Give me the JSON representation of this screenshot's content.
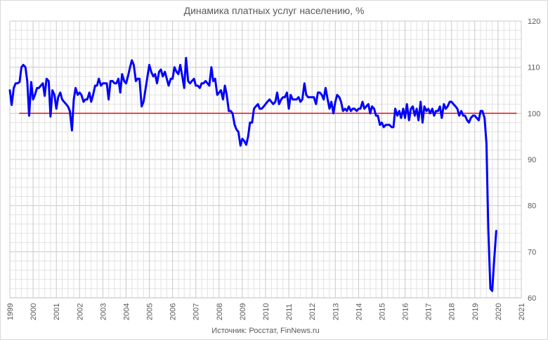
{
  "chart_data": {
    "type": "line",
    "title": "Динамика платных услуг населению, %",
    "source_note": "Источник: Росстат, FinNews.ru",
    "x_tick_labels": [
      "1999",
      "2000",
      "2001",
      "2002",
      "2003",
      "2004",
      "2005",
      "2006",
      "2007",
      "2008",
      "2009",
      "2010",
      "2011",
      "2012",
      "2013",
      "2014",
      "2015",
      "2016",
      "2017",
      "2018",
      "2019",
      "2020",
      "2021"
    ],
    "y_tick_labels": [
      "60",
      "70",
      "80",
      "90",
      "100",
      "110",
      "120"
    ],
    "xlim": [
      1999,
      2021
    ],
    "ylim": [
      60,
      120
    ],
    "y_axis_side": "right",
    "grid": true,
    "reference_line": {
      "value": 100,
      "x_start": 1999.4,
      "x_end": 2020.8,
      "color": "#e02020"
    },
    "series": [
      {
        "color": "#0000ff",
        "points": [
          [
            1999.0,
            105.0
          ],
          [
            1999.08,
            101.8
          ],
          [
            1999.17,
            105.5
          ],
          [
            1999.25,
            106.5
          ],
          [
            1999.33,
            106.5
          ],
          [
            1999.42,
            106.8
          ],
          [
            1999.5,
            110.0
          ],
          [
            1999.58,
            110.5
          ],
          [
            1999.67,
            110.0
          ],
          [
            1999.75,
            107.0
          ],
          [
            1999.83,
            99.5
          ],
          [
            1999.92,
            106.8
          ],
          [
            2000.0,
            103.0
          ],
          [
            2000.08,
            104.0
          ],
          [
            2000.17,
            105.5
          ],
          [
            2000.25,
            105.5
          ],
          [
            2000.33,
            106.0
          ],
          [
            2000.42,
            106.5
          ],
          [
            2000.5,
            103.8
          ],
          [
            2000.58,
            107.5
          ],
          [
            2000.67,
            107.0
          ],
          [
            2000.75,
            99.3
          ],
          [
            2000.83,
            105.0
          ],
          [
            2000.92,
            104.0
          ],
          [
            2001.0,
            101.0
          ],
          [
            2001.08,
            103.5
          ],
          [
            2001.17,
            104.5
          ],
          [
            2001.25,
            103.0
          ],
          [
            2001.33,
            102.5
          ],
          [
            2001.42,
            102.0
          ],
          [
            2001.5,
            101.5
          ],
          [
            2001.58,
            100.5
          ],
          [
            2001.67,
            96.3
          ],
          [
            2001.75,
            103.0
          ],
          [
            2001.83,
            105.5
          ],
          [
            2001.92,
            104.0
          ],
          [
            2002.0,
            104.5
          ],
          [
            2002.08,
            104.0
          ],
          [
            2002.17,
            102.5
          ],
          [
            2002.25,
            103.0
          ],
          [
            2002.33,
            103.0
          ],
          [
            2002.42,
            104.5
          ],
          [
            2002.5,
            102.5
          ],
          [
            2002.58,
            104.0
          ],
          [
            2002.67,
            106.0
          ],
          [
            2002.75,
            106.0
          ],
          [
            2002.83,
            107.5
          ],
          [
            2002.92,
            106.0
          ],
          [
            2003.0,
            106.5
          ],
          [
            2003.08,
            106.5
          ],
          [
            2003.17,
            106.5
          ],
          [
            2003.25,
            103.0
          ],
          [
            2003.33,
            107.0
          ],
          [
            2003.42,
            107.0
          ],
          [
            2003.5,
            106.5
          ],
          [
            2003.58,
            106.5
          ],
          [
            2003.67,
            107.5
          ],
          [
            2003.75,
            104.5
          ],
          [
            2003.83,
            108.5
          ],
          [
            2003.92,
            107.0
          ],
          [
            2004.0,
            106.5
          ],
          [
            2004.08,
            108.0
          ],
          [
            2004.17,
            110.0
          ],
          [
            2004.25,
            111.5
          ],
          [
            2004.33,
            110.5
          ],
          [
            2004.42,
            107.0
          ],
          [
            2004.5,
            107.5
          ],
          [
            2004.58,
            107.5
          ],
          [
            2004.67,
            101.5
          ],
          [
            2004.75,
            102.5
          ],
          [
            2004.83,
            105.0
          ],
          [
            2004.92,
            108.0
          ],
          [
            2005.0,
            110.5
          ],
          [
            2005.08,
            109.0
          ],
          [
            2005.17,
            108.0
          ],
          [
            2005.25,
            108.5
          ],
          [
            2005.33,
            106.5
          ],
          [
            2005.42,
            109.0
          ],
          [
            2005.5,
            109.5
          ],
          [
            2005.58,
            108.0
          ],
          [
            2005.67,
            109.0
          ],
          [
            2005.75,
            107.5
          ],
          [
            2005.83,
            106.0
          ],
          [
            2005.92,
            107.5
          ],
          [
            2006.0,
            107.5
          ],
          [
            2006.08,
            110.0
          ],
          [
            2006.17,
            109.0
          ],
          [
            2006.25,
            108.5
          ],
          [
            2006.33,
            110.5
          ],
          [
            2006.42,
            108.0
          ],
          [
            2006.5,
            105.5
          ],
          [
            2006.58,
            112.0
          ],
          [
            2006.67,
            107.0
          ],
          [
            2006.75,
            106.5
          ],
          [
            2006.83,
            107.0
          ],
          [
            2006.92,
            107.5
          ],
          [
            2007.0,
            106.0
          ],
          [
            2007.08,
            106.0
          ],
          [
            2007.17,
            105.5
          ],
          [
            2007.25,
            106.5
          ],
          [
            2007.33,
            106.5
          ],
          [
            2007.42,
            107.0
          ],
          [
            2007.5,
            106.5
          ],
          [
            2007.58,
            106.0
          ],
          [
            2007.67,
            110.0
          ],
          [
            2007.75,
            107.0
          ],
          [
            2007.83,
            107.5
          ],
          [
            2007.92,
            104.0
          ],
          [
            2008.0,
            104.5
          ],
          [
            2008.08,
            105.0
          ],
          [
            2008.17,
            103.0
          ],
          [
            2008.25,
            106.0
          ],
          [
            2008.33,
            104.0
          ],
          [
            2008.42,
            100.5
          ],
          [
            2008.5,
            100.5
          ],
          [
            2008.58,
            100.0
          ],
          [
            2008.67,
            97.5
          ],
          [
            2008.75,
            96.5
          ],
          [
            2008.83,
            96.0
          ],
          [
            2008.92,
            93.0
          ],
          [
            2009.0,
            94.5
          ],
          [
            2009.08,
            94.0
          ],
          [
            2009.17,
            93.2
          ],
          [
            2009.25,
            95.0
          ],
          [
            2009.33,
            98.0
          ],
          [
            2009.42,
            98.0
          ],
          [
            2009.5,
            101.0
          ],
          [
            2009.58,
            101.5
          ],
          [
            2009.67,
            102.0
          ],
          [
            2009.75,
            101.0
          ],
          [
            2009.83,
            101.0
          ],
          [
            2009.92,
            101.5
          ],
          [
            2010.0,
            102.0
          ],
          [
            2010.08,
            102.5
          ],
          [
            2010.17,
            103.0
          ],
          [
            2010.25,
            102.5
          ],
          [
            2010.33,
            102.0
          ],
          [
            2010.42,
            102.5
          ],
          [
            2010.5,
            104.5
          ],
          [
            2010.58,
            102.0
          ],
          [
            2010.67,
            103.0
          ],
          [
            2010.75,
            103.5
          ],
          [
            2010.83,
            103.5
          ],
          [
            2010.92,
            104.5
          ],
          [
            2011.0,
            101.0
          ],
          [
            2011.08,
            104.0
          ],
          [
            2011.17,
            103.0
          ],
          [
            2011.25,
            103.0
          ],
          [
            2011.33,
            103.0
          ],
          [
            2011.42,
            103.5
          ],
          [
            2011.5,
            102.5
          ],
          [
            2011.58,
            103.0
          ],
          [
            2011.67,
            106.5
          ],
          [
            2011.75,
            104.0
          ],
          [
            2011.83,
            103.5
          ],
          [
            2011.92,
            103.5
          ],
          [
            2012.0,
            103.5
          ],
          [
            2012.08,
            103.5
          ],
          [
            2012.17,
            102.0
          ],
          [
            2012.25,
            104.5
          ],
          [
            2012.33,
            104.5
          ],
          [
            2012.42,
            104.0
          ],
          [
            2012.5,
            103.0
          ],
          [
            2012.58,
            105.5
          ],
          [
            2012.67,
            103.0
          ],
          [
            2012.75,
            101.0
          ],
          [
            2012.83,
            102.5
          ],
          [
            2012.92,
            100.0
          ],
          [
            2013.0,
            102.5
          ],
          [
            2013.08,
            104.0
          ],
          [
            2013.17,
            103.5
          ],
          [
            2013.25,
            102.5
          ],
          [
            2013.33,
            100.5
          ],
          [
            2013.42,
            101.0
          ],
          [
            2013.5,
            100.5
          ],
          [
            2013.58,
            101.5
          ],
          [
            2013.67,
            100.5
          ],
          [
            2013.75,
            101.0
          ],
          [
            2013.83,
            101.0
          ],
          [
            2013.92,
            100.5
          ],
          [
            2014.0,
            101.0
          ],
          [
            2014.08,
            101.0
          ],
          [
            2014.17,
            102.5
          ],
          [
            2014.25,
            101.0
          ],
          [
            2014.33,
            101.5
          ],
          [
            2014.42,
            102.0
          ],
          [
            2014.5,
            100.0
          ],
          [
            2014.58,
            101.5
          ],
          [
            2014.67,
            101.0
          ],
          [
            2014.75,
            99.5
          ],
          [
            2014.83,
            99.5
          ],
          [
            2014.92,
            97.5
          ],
          [
            2015.0,
            98.0
          ],
          [
            2015.08,
            97.0
          ],
          [
            2015.17,
            97.5
          ],
          [
            2015.25,
            97.5
          ],
          [
            2015.33,
            97.5
          ],
          [
            2015.42,
            97.0
          ],
          [
            2015.5,
            97.0
          ],
          [
            2015.58,
            101.0
          ],
          [
            2015.67,
            99.5
          ],
          [
            2015.75,
            100.5
          ],
          [
            2015.83,
            99.0
          ],
          [
            2015.92,
            101.0
          ],
          [
            2016.0,
            99.0
          ],
          [
            2016.08,
            102.0
          ],
          [
            2016.17,
            98.5
          ],
          [
            2016.25,
            101.0
          ],
          [
            2016.33,
            101.5
          ],
          [
            2016.42,
            99.5
          ],
          [
            2016.5,
            101.0
          ],
          [
            2016.58,
            98.5
          ],
          [
            2016.67,
            102.5
          ],
          [
            2016.75,
            98.0
          ],
          [
            2016.83,
            101.5
          ],
          [
            2016.92,
            100.5
          ],
          [
            2017.0,
            101.0
          ],
          [
            2017.08,
            100.0
          ],
          [
            2017.17,
            101.0
          ],
          [
            2017.25,
            99.5
          ],
          [
            2017.33,
            100.5
          ],
          [
            2017.42,
            100.5
          ],
          [
            2017.5,
            101.5
          ],
          [
            2017.58,
            99.0
          ],
          [
            2017.67,
            102.0
          ],
          [
            2017.75,
            101.0
          ],
          [
            2017.83,
            101.5
          ],
          [
            2017.92,
            102.5
          ],
          [
            2018.0,
            102.5
          ],
          [
            2018.08,
            102.0
          ],
          [
            2018.17,
            101.5
          ],
          [
            2018.25,
            101.0
          ],
          [
            2018.33,
            99.5
          ],
          [
            2018.42,
            100.5
          ],
          [
            2018.5,
            99.5
          ],
          [
            2018.58,
            99.5
          ],
          [
            2018.67,
            98.5
          ],
          [
            2018.75,
            98.0
          ],
          [
            2018.83,
            99.0
          ],
          [
            2018.92,
            99.5
          ],
          [
            2019.0,
            99.5
          ],
          [
            2019.08,
            99.0
          ],
          [
            2019.17,
            98.5
          ],
          [
            2019.25,
            100.5
          ],
          [
            2019.33,
            100.5
          ],
          [
            2019.42,
            99.0
          ],
          [
            2019.5,
            93.5
          ],
          [
            2019.58,
            75.0
          ],
          [
            2019.67,
            62.0
          ],
          [
            2019.75,
            61.5
          ],
          [
            2019.83,
            68.0
          ],
          [
            2019.92,
            74.5
          ]
        ]
      }
    ]
  }
}
